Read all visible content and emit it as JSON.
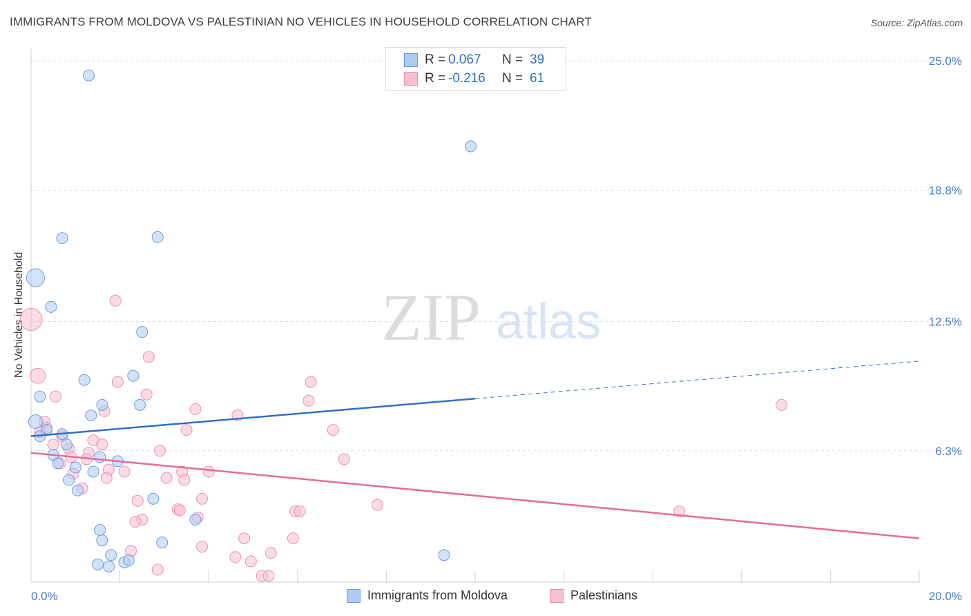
{
  "title": "IMMIGRANTS FROM MOLDOVA VS PALESTINIAN NO VEHICLES IN HOUSEHOLD CORRELATION CHART",
  "source": "Source: ZipAtlas.com",
  "watermark": {
    "zip": "ZIP",
    "atlas": "atlas"
  },
  "legend": {
    "rows": [
      {
        "r_label": "R =",
        "r_value": "0.067",
        "n_label": "N =",
        "n_value": "39"
      },
      {
        "r_label": "R =",
        "r_value": "-0.216",
        "n_label": "N =",
        "n_value": "61"
      }
    ]
  },
  "bottom_legend": {
    "series1": "Immigrants from Moldova",
    "series2": "Palestinians"
  },
  "colors": {
    "moldova_fill": "#aecbf0",
    "moldova_stroke": "#6d9de0",
    "moldova_line": "#2f6fca",
    "palestinian_fill": "#f8bfd2",
    "palestinian_stroke": "#ea8fb0",
    "palestinian_line": "#e8699a",
    "grid": "#dedede",
    "tick_text": "#4a7cc7"
  },
  "chart_data": {
    "type": "scatter",
    "title": "IMMIGRANTS FROM MOLDOVA VS PALESTINIAN NO VEHICLES IN HOUSEHOLD CORRELATION CHART",
    "xlabel": "",
    "ylabel": "No Vehicles in Household",
    "xlim": [
      0,
      20
    ],
    "ylim": [
      0,
      25.6
    ],
    "x_tick_labels": [
      "0.0%",
      "20.0%"
    ],
    "y_ticks": [
      6.3,
      12.5,
      18.8,
      25.0
    ],
    "y_tick_labels": [
      "6.3%",
      "12.5%",
      "18.8%",
      "25.0%"
    ],
    "grid": true,
    "series": [
      {
        "name": "Immigrants from Moldova",
        "trend": {
          "x": [
            0,
            10
          ],
          "y": [
            7.0,
            8.8
          ],
          "dashed_to": [
            20,
            10.6
          ]
        },
        "points": [
          [
            1.3,
            24.3,
            8
          ],
          [
            9.9,
            20.9,
            8
          ],
          [
            0.7,
            16.5,
            8
          ],
          [
            2.85,
            16.55,
            8
          ],
          [
            0.1,
            14.6,
            13
          ],
          [
            0.45,
            13.2,
            8
          ],
          [
            2.5,
            12.0,
            8
          ],
          [
            2.3,
            9.9,
            8
          ],
          [
            1.2,
            9.7,
            8
          ],
          [
            0.2,
            8.9,
            8
          ],
          [
            1.6,
            8.5,
            8
          ],
          [
            2.45,
            8.5,
            8
          ],
          [
            1.35,
            8.0,
            8
          ],
          [
            0.1,
            7.7,
            10
          ],
          [
            0.35,
            7.3,
            8
          ],
          [
            0.2,
            7.0,
            8
          ],
          [
            0.7,
            7.1,
            8
          ],
          [
            0.8,
            6.6,
            8
          ],
          [
            0.5,
            6.1,
            8
          ],
          [
            1.55,
            6.0,
            8
          ],
          [
            1.95,
            5.8,
            8
          ],
          [
            0.6,
            5.7,
            8
          ],
          [
            1.0,
            5.5,
            8
          ],
          [
            1.4,
            5.3,
            8
          ],
          [
            0.85,
            4.9,
            8
          ],
          [
            1.05,
            4.4,
            8
          ],
          [
            2.75,
            4.0,
            8
          ],
          [
            3.7,
            3.0,
            8
          ],
          [
            1.55,
            2.5,
            8
          ],
          [
            1.6,
            2.0,
            8
          ],
          [
            2.95,
            1.9,
            8
          ],
          [
            1.8,
            1.3,
            8
          ],
          [
            1.5,
            0.85,
            8
          ],
          [
            1.75,
            0.75,
            8
          ],
          [
            2.1,
            0.95,
            8
          ],
          [
            2.2,
            1.05,
            8
          ],
          [
            9.3,
            1.3,
            8
          ]
        ]
      },
      {
        "name": "Palestinians",
        "trend": {
          "x": [
            0,
            20
          ],
          "y": [
            6.2,
            2.1
          ]
        },
        "points": [
          [
            0.0,
            12.6,
            16
          ],
          [
            0.15,
            9.9,
            11
          ],
          [
            1.9,
            13.5,
            8
          ],
          [
            2.65,
            10.8,
            8
          ],
          [
            1.95,
            9.6,
            8
          ],
          [
            2.6,
            9.0,
            8
          ],
          [
            6.3,
            9.6,
            8
          ],
          [
            6.25,
            8.7,
            8
          ],
          [
            0.55,
            8.9,
            8
          ],
          [
            3.7,
            8.3,
            8
          ],
          [
            4.65,
            8.0,
            8
          ],
          [
            1.65,
            8.2,
            8
          ],
          [
            0.3,
            7.7,
            8
          ],
          [
            0.35,
            7.4,
            8
          ],
          [
            3.5,
            7.3,
            8
          ],
          [
            6.8,
            7.3,
            8
          ],
          [
            0.2,
            7.2,
            8
          ],
          [
            0.7,
            7.0,
            8
          ],
          [
            1.4,
            6.8,
            8
          ],
          [
            1.6,
            6.6,
            8
          ],
          [
            0.5,
            6.6,
            8
          ],
          [
            0.85,
            6.4,
            8
          ],
          [
            1.3,
            6.2,
            8
          ],
          [
            2.9,
            6.3,
            8
          ],
          [
            0.9,
            6.0,
            8
          ],
          [
            1.25,
            5.9,
            8
          ],
          [
            7.05,
            5.9,
            8
          ],
          [
            0.65,
            5.7,
            8
          ],
          [
            1.75,
            5.4,
            8
          ],
          [
            2.1,
            5.3,
            8
          ],
          [
            3.4,
            5.3,
            8
          ],
          [
            4.0,
            5.3,
            8
          ],
          [
            0.95,
            5.2,
            8
          ],
          [
            1.7,
            5.0,
            8
          ],
          [
            3.05,
            5.0,
            8
          ],
          [
            3.45,
            4.9,
            8
          ],
          [
            1.15,
            4.5,
            8
          ],
          [
            2.4,
            3.9,
            8
          ],
          [
            3.85,
            4.0,
            8
          ],
          [
            3.3,
            3.5,
            8
          ],
          [
            3.35,
            3.45,
            8
          ],
          [
            5.95,
            3.4,
            8
          ],
          [
            6.05,
            3.4,
            8
          ],
          [
            7.8,
            3.7,
            8
          ],
          [
            14.6,
            3.4,
            8
          ],
          [
            3.75,
            3.1,
            8
          ],
          [
            2.5,
            3.0,
            8
          ],
          [
            2.35,
            2.9,
            8
          ],
          [
            4.8,
            2.1,
            8
          ],
          [
            5.9,
            2.1,
            8
          ],
          [
            3.85,
            1.7,
            8
          ],
          [
            2.25,
            1.5,
            8
          ],
          [
            5.4,
            1.4,
            8
          ],
          [
            4.6,
            1.2,
            8
          ],
          [
            4.95,
            1.0,
            8
          ],
          [
            2.85,
            0.6,
            8
          ],
          [
            5.2,
            0.3,
            8
          ],
          [
            5.35,
            0.3,
            8
          ],
          [
            16.9,
            8.5,
            8
          ]
        ]
      }
    ]
  }
}
